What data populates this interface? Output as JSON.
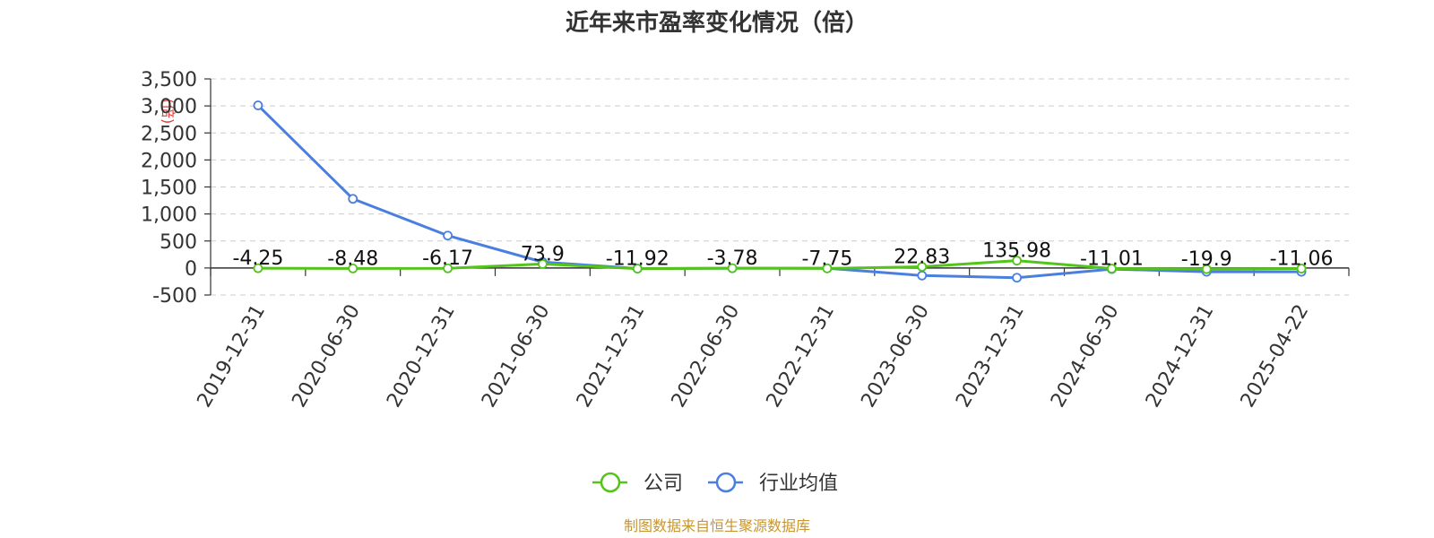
{
  "chart_data": {
    "type": "line",
    "title": "近年来市盈率变化情况（倍）",
    "ylabel": "(倍)",
    "xlabel": "",
    "categories": [
      "2019-12-31",
      "2020-06-30",
      "2020-12-31",
      "2021-06-30",
      "2021-12-31",
      "2022-06-30",
      "2022-12-31",
      "2023-06-30",
      "2023-12-31",
      "2024-06-30",
      "2024-12-31",
      "2025-04-22"
    ],
    "series": [
      {
        "name": "公司",
        "color": "#52c41a",
        "values": [
          -4.25,
          -8.48,
          -6.17,
          73.9,
          -11.92,
          -3.78,
          -7.75,
          22.83,
          135.98,
          -11.01,
          -19.9,
          -11.06
        ],
        "labels": [
          "-4.25",
          "-8.48",
          "-6.17",
          "73.9",
          "-11.92",
          "-3.78",
          "-7.75",
          "22.83",
          "135.98",
          "-11.01",
          "-19.9",
          "-11.06"
        ]
      },
      {
        "name": "行业均值",
        "color": "#4a7fdf",
        "values": [
          3010,
          1280,
          600,
          110,
          -10,
          -5,
          -5,
          -140,
          -180,
          -20,
          -70,
          -70
        ]
      }
    ],
    "ylim": [
      -500,
      3500
    ],
    "yticks": [
      -500,
      0,
      500,
      1000,
      1500,
      2000,
      2500,
      3000,
      3500
    ],
    "ytick_labels": [
      "-500",
      "0",
      "500",
      "1,000",
      "1,500",
      "2,000",
      "2,500",
      "3,000",
      "3,500"
    ],
    "grid": true,
    "legend_position": "bottom"
  },
  "footer": {
    "source": "制图数据来自恒生聚源数据库",
    "source_color": "#c8962f"
  }
}
